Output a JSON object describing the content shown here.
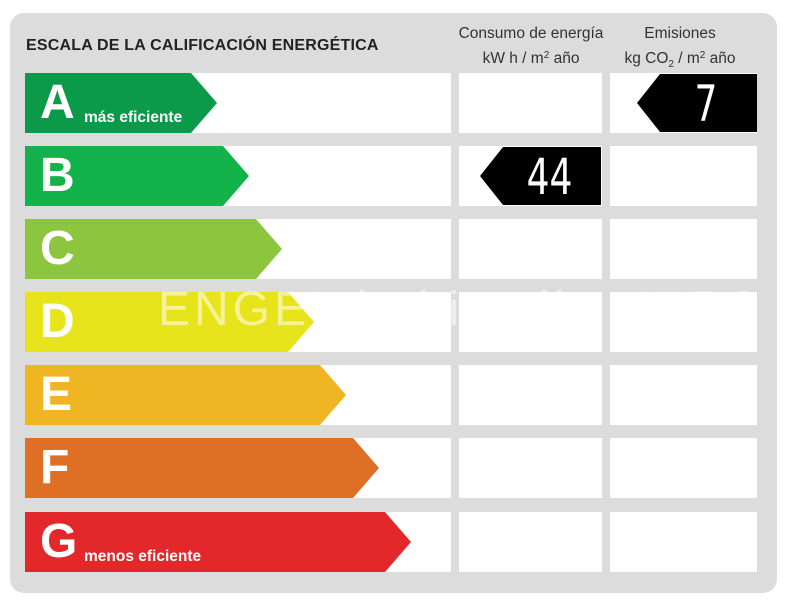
{
  "title": "ESCALA DE LA CALIFICACIÓN ENERGÉTICA",
  "consumption_header": {
    "line1": "Consumo de energía",
    "line2_pre": "kW h  / m",
    "line2_sup": "2",
    "line2_post": " año"
  },
  "emissions_header": {
    "line1": "Emisiones",
    "line2_pre": "kg CO",
    "line2_sub": "2",
    "line2_mid": "  / m",
    "line2_sup": "2",
    "line2_post": " año"
  },
  "ratings": [
    {
      "letter": "A",
      "sublabel": "más eficiente",
      "color": "#0a9a4a"
    },
    {
      "letter": "B",
      "sublabel": "",
      "color": "#14b24a"
    },
    {
      "letter": "C",
      "sublabel": "",
      "color": "#8cc63f"
    },
    {
      "letter": "D",
      "sublabel": "",
      "color": "#e8e41c"
    },
    {
      "letter": "E",
      "sublabel": "",
      "color": "#f0b522"
    },
    {
      "letter": "F",
      "sublabel": "",
      "color": "#e06f26"
    },
    {
      "letter": "G",
      "sublabel": "menos eficiente",
      "color": "#e3282b"
    }
  ],
  "consumption": {
    "value": "44",
    "rating": "B"
  },
  "emissions": {
    "value": "7",
    "rating": "A"
  },
  "watermark": "ENGEL  habitaclia  KERS"
}
